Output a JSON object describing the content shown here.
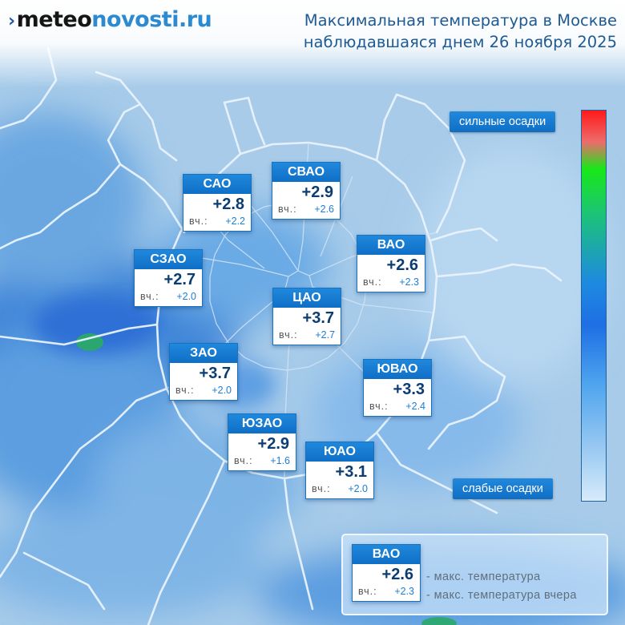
{
  "brand": {
    "mark": "›",
    "part1": "meteo",
    "part2": "novosti.ru"
  },
  "title": {
    "line1": "Максимальная температура в Москве",
    "line2": "наблюдавшаяся днем 26 ноября 2025"
  },
  "districts": [
    {
      "name": "САО",
      "temp": "+2.8",
      "ylabel": "вч.:",
      "yval": "+2.2"
    },
    {
      "name": "СВАО",
      "temp": "+2.9",
      "ylabel": "вч.:",
      "yval": "+2.6"
    },
    {
      "name": "ВАО",
      "temp": "+2.6",
      "ylabel": "вч.:",
      "yval": "+2.3"
    },
    {
      "name": "СЗАО",
      "temp": "+2.7",
      "ylabel": "вч.:",
      "yval": "+2.0"
    },
    {
      "name": "ЦАО",
      "temp": "+3.7",
      "ylabel": "вч.:",
      "yval": "+2.7"
    },
    {
      "name": "ЗАО",
      "temp": "+3.7",
      "ylabel": "вч.:",
      "yval": "+2.0"
    },
    {
      "name": "ЮВАО",
      "temp": "+3.3",
      "ylabel": "вч.:",
      "yval": "+2.4"
    },
    {
      "name": "ЮЗАО",
      "temp": "+2.9",
      "ylabel": "вч.:",
      "yval": "+1.6"
    },
    {
      "name": "ЮАО",
      "temp": "+3.1",
      "ylabel": "вч.:",
      "yval": "+2.0"
    }
  ],
  "scale": {
    "top_label": "сильные осадки",
    "bottom_label": "слабые осадки"
  },
  "legend": {
    "card": {
      "name": "ВАО",
      "temp": "+2.6",
      "ylabel": "вч.:",
      "yval": "+2.3"
    },
    "desc_temp": "- макс. температура",
    "desc_yesterday": "- макс. температура вчера"
  },
  "colors": {
    "header_blue": "#1672c2",
    "temp_text": "#0b3d72",
    "yesterday_value": "#1c7ed6",
    "title_text": "#1e5a93",
    "precip_spot": "#2aa96a"
  }
}
